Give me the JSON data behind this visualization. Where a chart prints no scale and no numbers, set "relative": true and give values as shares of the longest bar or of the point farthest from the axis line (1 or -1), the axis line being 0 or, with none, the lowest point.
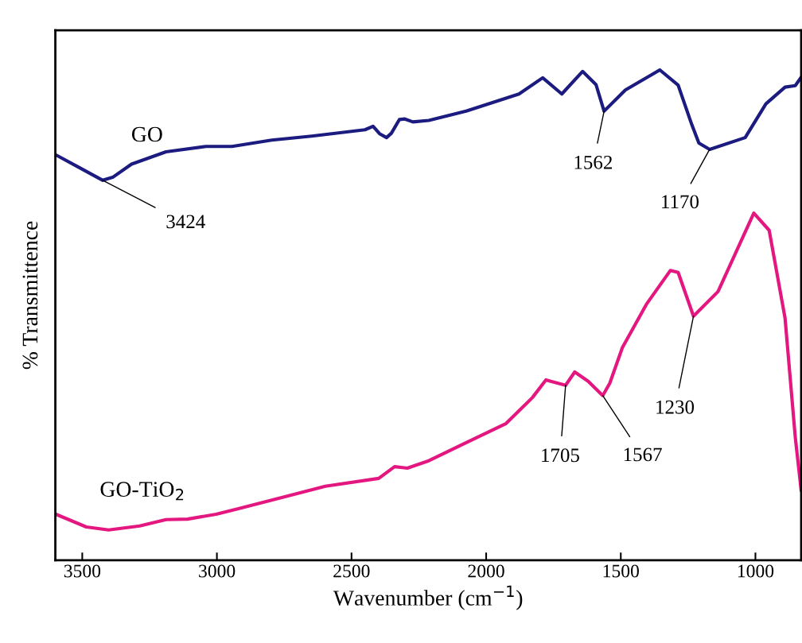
{
  "chart_data": {
    "type": "line",
    "relative": true,
    "xlabel": "Wavenumber (cm$^{−1}$)",
    "ylabel": "% Transmittence",
    "xlim": [
      3600,
      830
    ],
    "xticks": [
      3500,
      3000,
      2500,
      2000,
      1500,
      1000
    ],
    "grid": false,
    "legend": false,
    "marker": "none",
    "line_style": "solid",
    "series": [
      {
        "name": "GO",
        "color": "#1c1c80",
        "x": [
          3599,
          3515,
          3424,
          3387,
          3317,
          3189,
          3041,
          2944,
          2796,
          2648,
          2450,
          2420,
          2396,
          2370,
          2352,
          2322,
          2302,
          2272,
          2213,
          2074,
          1878,
          1790,
          1719,
          1642,
          1592,
          1562,
          1483,
          1355,
          1287,
          1236,
          1210,
          1170,
          1038,
          961,
          890,
          852,
          830
        ],
        "values": [
          0.827,
          0.802,
          0.775,
          0.781,
          0.808,
          0.833,
          0.844,
          0.844,
          0.857,
          0.865,
          0.878,
          0.885,
          0.87,
          0.862,
          0.871,
          0.899,
          0.9,
          0.894,
          0.897,
          0.916,
          0.951,
          0.984,
          0.951,
          0.997,
          0.97,
          0.916,
          0.959,
          1.0,
          0.969,
          0.888,
          0.851,
          0.838,
          0.862,
          0.931,
          0.965,
          0.968,
          0.985
        ]
      },
      {
        "name": "GO-TiO$_{2}$",
        "color": "#e3177f",
        "x": [
          3598,
          3485,
          3402,
          3287,
          3189,
          3109,
          3003,
          2923,
          2745,
          2597,
          2399,
          2340,
          2293,
          2213,
          2074,
          1926,
          1828,
          1778,
          1760,
          1705,
          1671,
          1621,
          1567,
          1541,
          1494,
          1405,
          1316,
          1287,
          1230,
          1139,
          1006,
          949,
          890,
          852,
          830
        ],
        "values": [
          0.094,
          0.068,
          0.062,
          0.07,
          0.083,
          0.084,
          0.094,
          0.105,
          0.13,
          0.151,
          0.167,
          0.191,
          0.188,
          0.203,
          0.24,
          0.279,
          0.332,
          0.368,
          0.365,
          0.357,
          0.384,
          0.365,
          0.336,
          0.361,
          0.434,
          0.522,
          0.591,
          0.587,
          0.498,
          0.548,
          0.708,
          0.673,
          0.494,
          0.251,
          0.142
        ]
      }
    ],
    "annotations": [
      {
        "text": "3424",
        "x": 3424,
        "y": 0.775
      },
      {
        "text": "1562",
        "x": 1562,
        "y": 0.916
      },
      {
        "text": "1170",
        "x": 1170,
        "y": 0.838
      },
      {
        "text": "1705",
        "x": 1705,
        "y": 0.357
      },
      {
        "text": "1567",
        "x": 1567,
        "y": 0.336
      },
      {
        "text": "1230",
        "x": 1230,
        "y": 0.498
      }
    ]
  }
}
